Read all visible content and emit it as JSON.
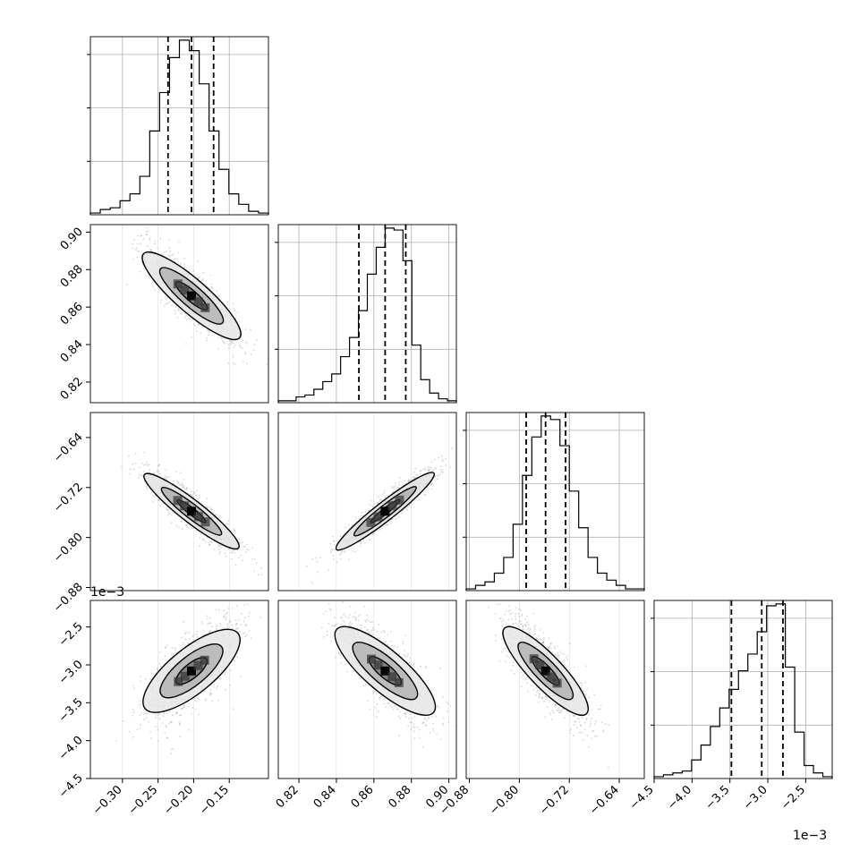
{
  "chart_data": {
    "type": "corner",
    "title": "",
    "grid": true,
    "exponent_labels": {
      "param4_x": "1e−3",
      "param4_y": "1e−3"
    },
    "params": [
      {
        "range": [
          -0.345,
          -0.095
        ],
        "ticks": [
          -0.3,
          -0.25,
          -0.2,
          -0.15
        ],
        "tick_labels": [
          "−0.30",
          "−0.25",
          "−0.20",
          "−0.15"
        ],
        "quantiles": [
          -0.236,
          -0.203,
          -0.172
        ],
        "hist_counts": [
          1,
          3,
          4,
          8,
          12,
          22,
          48,
          70,
          90,
          100,
          94,
          75,
          48,
          26,
          12,
          6,
          2,
          1
        ]
      },
      {
        "range": [
          0.809,
          0.904
        ],
        "ticks": [
          0.82,
          0.84,
          0.86,
          0.88,
          0.9
        ],
        "tick_labels": [
          "0.82",
          "0.84",
          "0.86",
          "0.88",
          "0.90"
        ],
        "quantiles": [
          0.852,
          0.866,
          0.877
        ],
        "hist_counts": [
          1,
          1,
          3,
          4,
          7,
          11,
          15,
          24,
          34,
          48,
          67,
          81,
          91,
          90,
          74,
          30,
          12,
          5,
          2,
          1
        ]
      },
      {
        "range": [
          -0.885,
          -0.6
        ],
        "ticks": [
          -0.88,
          -0.8,
          -0.72,
          -0.64
        ],
        "tick_labels": [
          "−0.88",
          "−0.80",
          "−0.72",
          "−0.64"
        ],
        "quantiles": [
          -0.789,
          -0.758,
          -0.726
        ],
        "hist_counts": [
          1,
          3,
          5,
          10,
          19,
          38,
          66,
          88,
          100,
          98,
          83,
          57,
          36,
          19,
          10,
          6,
          3,
          1,
          1
        ]
      },
      {
        "range": [
          -4.5,
          -2.15
        ],
        "ticks": [
          -4.5,
          -4.0,
          -3.5,
          -3.0,
          -2.5
        ],
        "tick_labels": [
          "−4.5",
          "−4.0",
          "−3.5",
          "−3.0",
          "−2.5"
        ],
        "quantiles": [
          -3.48,
          -3.08,
          -2.8
        ],
        "hist_counts": [
          1,
          2,
          3,
          4,
          10,
          18,
          28,
          38,
          48,
          58,
          67,
          79,
          93,
          94,
          60,
          25,
          7,
          3,
          1
        ]
      }
    ],
    "correlations": [
      {
        "row": 1,
        "col": 0,
        "rho": -0.85,
        "contours": [
          {
            "s": 0.5,
            "fill": "#7a7a7a"
          },
          {
            "s": 1.0,
            "fill": "#b4b4b4"
          },
          {
            "s": 1.55,
            "fill": "#e6e6e6"
          }
        ]
      },
      {
        "row": 2,
        "col": 0,
        "rho": -0.9,
        "contours": [
          {
            "s": 0.45,
            "fill": "#6e6e6e"
          },
          {
            "s": 0.95,
            "fill": "#b0b0b0"
          },
          {
            "s": 1.5,
            "fill": "#e4e4e4"
          }
        ]
      },
      {
        "row": 2,
        "col": 1,
        "rho": 0.93,
        "contours": [
          {
            "s": 0.45,
            "fill": "#6e6e6e"
          },
          {
            "s": 0.95,
            "fill": "#b0b0b0"
          },
          {
            "s": 1.5,
            "fill": "#e4e4e4"
          }
        ]
      },
      {
        "row": 3,
        "col": 0,
        "rho": 0.72,
        "contours": [
          {
            "s": 0.5,
            "fill": "#7a7a7a"
          },
          {
            "s": 1.0,
            "fill": "#b4b4b4"
          },
          {
            "s": 1.55,
            "fill": "#e6e6e6"
          }
        ]
      },
      {
        "row": 3,
        "col": 1,
        "rho": -0.78,
        "contours": [
          {
            "s": 0.5,
            "fill": "#7a7a7a"
          },
          {
            "s": 1.0,
            "fill": "#b4b4b4"
          },
          {
            "s": 1.55,
            "fill": "#e6e6e6"
          }
        ]
      },
      {
        "row": 3,
        "col": 2,
        "rho": -0.8,
        "contours": [
          {
            "s": 0.5,
            "fill": "#7a7a7a"
          },
          {
            "s": 1.0,
            "fill": "#b4b4b4"
          },
          {
            "s": 1.55,
            "fill": "#e6e6e6"
          }
        ]
      }
    ],
    "colors": {
      "line": "#000000",
      "grid": "#b0b0b0",
      "scatter": "#8c8c8c",
      "background": "#ffffff"
    }
  }
}
